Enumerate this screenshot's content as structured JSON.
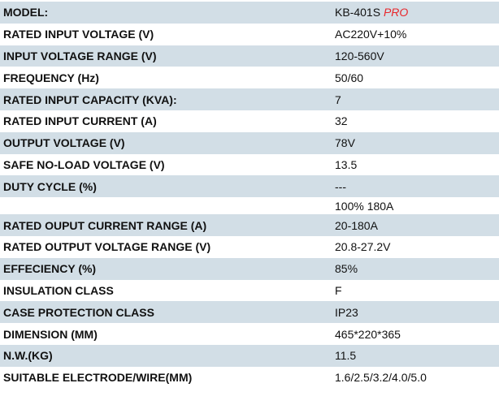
{
  "accent_color": "#e8262b",
  "row_color": "#d2dee6",
  "model": {
    "label": "MODEL:",
    "value": "KB-401S",
    "suffix": "PRO"
  },
  "rows": [
    {
      "label": "RATED INPUT VOLTAGE (V)",
      "value": "AC220V+10%"
    },
    {
      "label": "INPUT VOLTAGE RANGE (V)",
      "value": "120-560V"
    },
    {
      "label": "FREQUENCY (Hz)",
      "value": "50/60"
    },
    {
      "label": "RATED INPUT CAPACITY (KVA):",
      "value": "7"
    },
    {
      "label": "RATED INPUT CURRENT (A)",
      "value": "32"
    },
    {
      "label": "OUTPUT VOLTAGE (V)",
      "value": "78V"
    },
    {
      "label": "SAFE NO-LOAD VOLTAGE (V)",
      "value": "13.5"
    },
    {
      "label": "DUTY CYCLE (%)",
      "value": "---"
    },
    {
      "label": "",
      "value": "100% 180A"
    },
    {
      "label": "RATED OUPUT CURRENT RANGE (A)",
      "value": "20-180A"
    },
    {
      "label": "RATED OUTPUT VOLTAGE RANGE (V)",
      "value": "20.8-27.2V"
    },
    {
      "label": "EFFECIENCY (%)",
      "value": "85%"
    },
    {
      "label": "INSULATION CLASS",
      "value": "F"
    },
    {
      "label": "CASE PROTECTION CLASS",
      "value": "IP23"
    },
    {
      "label": "DIMENSION (MM)",
      "value": "465*220*365"
    },
    {
      "label": "N.W.(KG)",
      "value": "11.5"
    },
    {
      "label": "SUITABLE ELECTRODE/WIRE(MM)",
      "value": "1.6/2.5/3.2/4.0/5.0"
    }
  ]
}
